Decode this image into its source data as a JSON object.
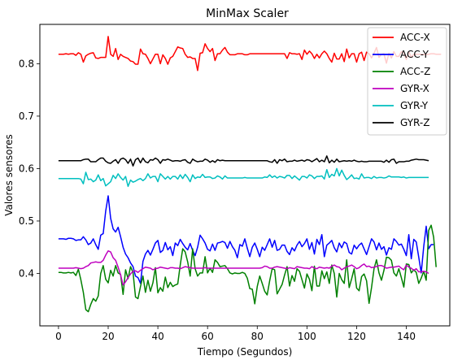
{
  "chart_data": {
    "type": "line",
    "title": "MinMax Scaler",
    "xlabel": "Tiempo (Segundos)",
    "ylabel": "Valores sensores",
    "xlim": [
      -7.5,
      157.5
    ],
    "ylim": [
      0.3,
      0.875
    ],
    "xticks": [
      0,
      20,
      40,
      60,
      80,
      100,
      120,
      140
    ],
    "yticks": [
      0.4,
      0.5,
      0.6,
      0.7,
      0.8
    ],
    "ytick_labels": [
      "0.4",
      "0.5",
      "0.6",
      "0.7",
      "0.8"
    ],
    "grid": false,
    "legend_position": "top-right",
    "x_start": 0,
    "x_step": 1,
    "series": [
      {
        "name": "ACC-X",
        "color": "#ff0000",
        "values": [
          0.818,
          0.818,
          0.818,
          0.819,
          0.818,
          0.819,
          0.819,
          0.816,
          0.821,
          0.818,
          0.803,
          0.815,
          0.818,
          0.82,
          0.821,
          0.811,
          0.81,
          0.812,
          0.812,
          0.812,
          0.852,
          0.818,
          0.814,
          0.829,
          0.808,
          0.818,
          0.814,
          0.812,
          0.81,
          0.805,
          0.804,
          0.799,
          0.799,
          0.828,
          0.819,
          0.818,
          0.81,
          0.8,
          0.809,
          0.818,
          0.818,
          0.8,
          0.817,
          0.81,
          0.799,
          0.811,
          0.814,
          0.823,
          0.832,
          0.83,
          0.829,
          0.818,
          0.812,
          0.813,
          0.81,
          0.81,
          0.787,
          0.82,
          0.821,
          0.838,
          0.829,
          0.823,
          0.829,
          0.806,
          0.819,
          0.819,
          0.826,
          0.831,
          0.822,
          0.817,
          0.817,
          0.817,
          0.819,
          0.819,
          0.819,
          0.817,
          0.817,
          0.819,
          0.819,
          0.819,
          0.819,
          0.819,
          0.819,
          0.819,
          0.819,
          0.819,
          0.819,
          0.819,
          0.819,
          0.819,
          0.819,
          0.819,
          0.81,
          0.821,
          0.819,
          0.819,
          0.818,
          0.819,
          0.808,
          0.826,
          0.818,
          0.824,
          0.819,
          0.81,
          0.818,
          0.811,
          0.819,
          0.824,
          0.819,
          0.81,
          0.803,
          0.82,
          0.809,
          0.809,
          0.819,
          0.804,
          0.828,
          0.811,
          0.819,
          0.819,
          0.803,
          0.819,
          0.822,
          0.806,
          0.822,
          0.819,
          0.811,
          0.82,
          0.831,
          0.812,
          0.818,
          0.819,
          0.801,
          0.82,
          0.811,
          0.823,
          0.814,
          0.814,
          0.823,
          0.82,
          0.808,
          0.823,
          0.812,
          0.818,
          0.818,
          0.818,
          0.818,
          0.818,
          0.817,
          0.818,
          0.819,
          0.819,
          0.818,
          0.818,
          0.818
        ]
      },
      {
        "name": "ACC-Y",
        "color": "#0000ff",
        "values": [
          0.466,
          0.466,
          0.466,
          0.465,
          0.467,
          0.467,
          0.466,
          0.463,
          0.464,
          0.464,
          0.47,
          0.464,
          0.455,
          0.458,
          0.466,
          0.455,
          0.446,
          0.473,
          0.476,
          0.519,
          0.548,
          0.505,
          0.485,
          0.479,
          0.488,
          0.47,
          0.45,
          0.437,
          0.43,
          0.42,
          0.413,
          0.395,
          0.392,
          0.381,
          0.423,
          0.437,
          0.444,
          0.435,
          0.446,
          0.458,
          0.463,
          0.44,
          0.444,
          0.459,
          0.445,
          0.451,
          0.434,
          0.458,
          0.453,
          0.465,
          0.457,
          0.45,
          0.445,
          0.457,
          0.444,
          0.434,
          0.45,
          0.473,
          0.466,
          0.458,
          0.446,
          0.443,
          0.456,
          0.444,
          0.458,
          0.459,
          0.461,
          0.459,
          0.448,
          0.461,
          0.451,
          0.444,
          0.43,
          0.455,
          0.452,
          0.466,
          0.448,
          0.432,
          0.45,
          0.458,
          0.446,
          0.432,
          0.45,
          0.444,
          0.455,
          0.466,
          0.45,
          0.463,
          0.444,
          0.446,
          0.454,
          0.454,
          0.442,
          0.436,
          0.449,
          0.443,
          0.454,
          0.461,
          0.451,
          0.457,
          0.466,
          0.446,
          0.459,
          0.437,
          0.465,
          0.455,
          0.474,
          0.432,
          0.454,
          0.458,
          0.463,
          0.449,
          0.441,
          0.458,
          0.449,
          0.46,
          0.457,
          0.44,
          0.437,
          0.454,
          0.447,
          0.454,
          0.458,
          0.447,
          0.436,
          0.451,
          0.466,
          0.46,
          0.445,
          0.458,
          0.446,
          0.451,
          0.435,
          0.449,
          0.446,
          0.466,
          0.461,
          0.454,
          0.456,
          0.446,
          0.434,
          0.474,
          0.428,
          0.465,
          0.46,
          0.431,
          0.401,
          0.451,
          0.49,
          0.447,
          0.455,
          0.455
        ]
      },
      {
        "name": "ACC-Z",
        "color": "#008000",
        "values": [
          0.402,
          0.402,
          0.401,
          0.401,
          0.402,
          0.401,
          0.402,
          0.396,
          0.408,
          0.388,
          0.364,
          0.331,
          0.327,
          0.341,
          0.352,
          0.347,
          0.357,
          0.4,
          0.415,
          0.389,
          0.382,
          0.406,
          0.395,
          0.415,
          0.401,
          0.398,
          0.36,
          0.407,
          0.39,
          0.413,
          0.402,
          0.355,
          0.352,
          0.375,
          0.395,
          0.364,
          0.387,
          0.366,
          0.382,
          0.411,
          0.363,
          0.373,
          0.366,
          0.393,
          0.373,
          0.383,
          0.375,
          0.378,
          0.38,
          0.416,
          0.447,
          0.441,
          0.422,
          0.395,
          0.447,
          0.409,
          0.395,
          0.401,
          0.401,
          0.432,
          0.401,
          0.41,
          0.402,
          0.426,
          0.421,
          0.413,
          0.414,
          0.415,
          0.409,
          0.401,
          0.399,
          0.401,
          0.4,
          0.4,
          0.402,
          0.4,
          0.391,
          0.371,
          0.37,
          0.342,
          0.375,
          0.395,
          0.381,
          0.366,
          0.359,
          0.386,
          0.409,
          0.407,
          0.361,
          0.37,
          0.379,
          0.397,
          0.413,
          0.376,
          0.396,
          0.385,
          0.409,
          0.404,
          0.388,
          0.372,
          0.399,
          0.389,
          0.367,
          0.414,
          0.376,
          0.376,
          0.405,
          0.39,
          0.403,
          0.381,
          0.416,
          0.4,
          0.355,
          0.4,
          0.388,
          0.381,
          0.426,
          0.373,
          0.39,
          0.409,
          0.372,
          0.367,
          0.394,
          0.399,
          0.386,
          0.343,
          0.373,
          0.409,
          0.426,
          0.401,
          0.387,
          0.406,
          0.431,
          0.43,
          0.425,
          0.401,
          0.395,
          0.409,
          0.392,
          0.374,
          0.418,
          0.417,
          0.401,
          0.407,
          0.402,
          0.381,
          0.391,
          0.404,
          0.387,
          0.482,
          0.492,
          0.469,
          0.412
        ]
      },
      {
        "name": "GYR-X",
        "color": "#bf00bf",
        "values": [
          0.41,
          0.41,
          0.41,
          0.41,
          0.41,
          0.41,
          0.41,
          0.411,
          0.41,
          0.409,
          0.41,
          0.413,
          0.415,
          0.42,
          0.421,
          0.422,
          0.421,
          0.421,
          0.425,
          0.435,
          0.443,
          0.441,
          0.43,
          0.425,
          0.412,
          0.397,
          0.378,
          0.384,
          0.392,
          0.399,
          0.404,
          0.405,
          0.402,
          0.406,
          0.409,
          0.412,
          0.411,
          0.41,
          0.407,
          0.409,
          0.41,
          0.412,
          0.411,
          0.41,
          0.409,
          0.411,
          0.411,
          0.41,
          0.41,
          0.409,
          0.411,
          0.413,
          0.412,
          0.411,
          0.41,
          0.41,
          0.41,
          0.41,
          0.41,
          0.411,
          0.41,
          0.41,
          0.41,
          0.41,
          0.41,
          0.41,
          0.41,
          0.41,
          0.41,
          0.41,
          0.41,
          0.41,
          0.41,
          0.41,
          0.41,
          0.41,
          0.41,
          0.41,
          0.41,
          0.41,
          0.41,
          0.41,
          0.411,
          0.414,
          0.413,
          0.41,
          0.41,
          0.412,
          0.413,
          0.412,
          0.411,
          0.41,
          0.409,
          0.411,
          0.41,
          0.409,
          0.413,
          0.412,
          0.411,
          0.41,
          0.41,
          0.409,
          0.413,
          0.41,
          0.409,
          0.412,
          0.411,
          0.41,
          0.411,
          0.41,
          0.414,
          0.416,
          0.413,
          0.412,
          0.407,
          0.41,
          0.413,
          0.414,
          0.416,
          0.413,
          0.409,
          0.411,
          0.415,
          0.418,
          0.413,
          0.414,
          0.411,
          0.412,
          0.413,
          0.415,
          0.415,
          0.413,
          0.41,
          0.411,
          0.412,
          0.412,
          0.413,
          0.414,
          0.41,
          0.407,
          0.416,
          0.412,
          0.41,
          0.406,
          0.409,
          0.403,
          0.403,
          0.404,
          0.403,
          0.4
        ]
      },
      {
        "name": "GYR-Y",
        "color": "#00bfbf",
        "values": [
          0.581,
          0.581,
          0.581,
          0.581,
          0.581,
          0.581,
          0.581,
          0.581,
          0.581,
          0.58,
          0.571,
          0.593,
          0.579,
          0.58,
          0.575,
          0.578,
          0.588,
          0.577,
          0.581,
          0.567,
          0.571,
          0.575,
          0.587,
          0.581,
          0.59,
          0.583,
          0.578,
          0.585,
          0.566,
          0.578,
          0.574,
          0.576,
          0.579,
          0.581,
          0.577,
          0.581,
          0.59,
          0.582,
          0.585,
          0.585,
          0.575,
          0.59,
          0.585,
          0.58,
          0.585,
          0.58,
          0.585,
          0.585,
          0.58,
          0.588,
          0.581,
          0.589,
          0.583,
          0.575,
          0.588,
          0.581,
          0.584,
          0.583,
          0.589,
          0.583,
          0.584,
          0.584,
          0.581,
          0.582,
          0.586,
          0.584,
          0.58,
          0.586,
          0.582,
          0.582,
          0.582,
          0.582,
          0.582,
          0.582,
          0.582,
          0.583,
          0.582,
          0.582,
          0.582,
          0.582,
          0.582,
          0.582,
          0.582,
          0.584,
          0.583,
          0.588,
          0.583,
          0.586,
          0.582,
          0.585,
          0.584,
          0.582,
          0.587,
          0.587,
          0.581,
          0.586,
          0.582,
          0.578,
          0.585,
          0.585,
          0.582,
          0.588,
          0.586,
          0.581,
          0.585,
          0.585,
          0.586,
          0.58,
          0.598,
          0.583,
          0.589,
          0.586,
          0.6,
          0.586,
          0.597,
          0.587,
          0.579,
          0.583,
          0.588,
          0.581,
          0.582,
          0.58,
          0.59,
          0.582,
          0.583,
          0.583,
          0.581,
          0.585,
          0.582,
          0.583,
          0.583,
          0.582,
          0.583,
          0.586,
          0.584,
          0.584,
          0.584,
          0.584,
          0.583,
          0.584,
          0.582,
          0.583,
          0.583,
          0.583,
          0.583,
          0.583,
          0.583,
          0.583,
          0.583,
          0.583
        ]
      },
      {
        "name": "GYR-Z",
        "color": "#000000",
        "values": [
          0.615,
          0.615,
          0.615,
          0.615,
          0.615,
          0.615,
          0.615,
          0.615,
          0.615,
          0.615,
          0.617,
          0.618,
          0.618,
          0.613,
          0.613,
          0.613,
          0.617,
          0.62,
          0.62,
          0.614,
          0.611,
          0.61,
          0.614,
          0.617,
          0.61,
          0.618,
          0.62,
          0.617,
          0.61,
          0.618,
          0.605,
          0.617,
          0.62,
          0.611,
          0.62,
          0.613,
          0.611,
          0.617,
          0.616,
          0.62,
          0.617,
          0.61,
          0.617,
          0.616,
          0.618,
          0.616,
          0.614,
          0.615,
          0.615,
          0.614,
          0.616,
          0.617,
          0.612,
          0.61,
          0.618,
          0.615,
          0.613,
          0.614,
          0.614,
          0.618,
          0.616,
          0.612,
          0.615,
          0.612,
          0.617,
          0.615,
          0.616,
          0.615,
          0.615,
          0.615,
          0.615,
          0.615,
          0.615,
          0.615,
          0.615,
          0.615,
          0.615,
          0.615,
          0.615,
          0.615,
          0.615,
          0.615,
          0.615,
          0.615,
          0.615,
          0.613,
          0.612,
          0.617,
          0.61,
          0.617,
          0.615,
          0.618,
          0.613,
          0.614,
          0.614,
          0.616,
          0.614,
          0.615,
          0.616,
          0.614,
          0.617,
          0.616,
          0.613,
          0.616,
          0.619,
          0.613,
          0.616,
          0.613,
          0.624,
          0.611,
          0.616,
          0.612,
          0.618,
          0.613,
          0.614,
          0.615,
          0.614,
          0.615,
          0.614,
          0.616,
          0.614,
          0.613,
          0.614,
          0.613,
          0.613,
          0.614,
          0.614,
          0.614,
          0.614,
          0.614,
          0.614,
          0.612,
          0.616,
          0.612,
          0.617,
          0.618,
          0.61,
          0.613,
          0.613,
          0.613,
          0.614,
          0.614,
          0.616,
          0.617,
          0.618,
          0.617,
          0.617,
          0.617,
          0.616,
          0.615
        ]
      }
    ]
  }
}
